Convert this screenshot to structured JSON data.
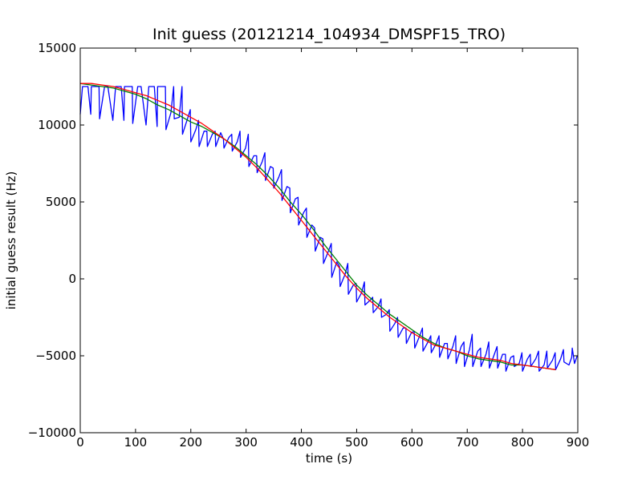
{
  "chart_data": {
    "type": "line",
    "title": "Init guess (20121214_104934_DMSPF15_TRO)",
    "xlabel": "time (s)",
    "ylabel": "initial guess result (Hz)",
    "xlim": [
      0,
      900
    ],
    "ylim": [
      -10000,
      15000
    ],
    "xticks": [
      0,
      100,
      200,
      300,
      400,
      500,
      600,
      700,
      800,
      900
    ],
    "yticks": [
      -10000,
      -5000,
      0,
      5000,
      10000,
      15000
    ],
    "xtick_labels": [
      "0",
      "100",
      "200",
      "300",
      "400",
      "500",
      "600",
      "700",
      "800",
      "900"
    ],
    "ytick_labels": [
      "−10000",
      "−5000",
      "0",
      "5000",
      "10000",
      "15000"
    ],
    "grid": false,
    "legend": "none",
    "series": [
      {
        "color": "#0000ff",
        "x": [
          0,
          4,
          5,
          14,
          19,
          20,
          29,
          34,
          35,
          44,
          49,
          50,
          59,
          64,
          65,
          74,
          79,
          80,
          89,
          94,
          95,
          104,
          109,
          110,
          119,
          124,
          125,
          134,
          139,
          140,
          149,
          154,
          155,
          164,
          169,
          170,
          179,
          184,
          185,
          194,
          199,
          200,
          209,
          214,
          215,
          224,
          229,
          230,
          239,
          244,
          245,
          254,
          259,
          260,
          269,
          274,
          275,
          284,
          289,
          290,
          299,
          304,
          305,
          314,
          319,
          320,
          329,
          334,
          335,
          344,
          349,
          350,
          359,
          364,
          365,
          374,
          379,
          380,
          389,
          394,
          395,
          404,
          409,
          410,
          419,
          424,
          425,
          434,
          439,
          440,
          449,
          454,
          455,
          464,
          469,
          470,
          479,
          484,
          485,
          494,
          499,
          500,
          509,
          514,
          515,
          524,
          529,
          530,
          539,
          544,
          545,
          554,
          559,
          560,
          569,
          574,
          575,
          584,
          589,
          590,
          599,
          604,
          605,
          614,
          619,
          620,
          629,
          634,
          635,
          644,
          649,
          650,
          659,
          664,
          665,
          674,
          679,
          680,
          689,
          694,
          695,
          704,
          709,
          710,
          719,
          724,
          725,
          734,
          739,
          740,
          749,
          754,
          755,
          764,
          769,
          770,
          779,
          784,
          785,
          794,
          799,
          800,
          809,
          814,
          815,
          824,
          829,
          830,
          839,
          844,
          845,
          854,
          859,
          860,
          869,
          874,
          875,
          884,
          889,
          890,
          894,
          899,
          900
        ],
        "y": [
          10700,
          12500,
          12500,
          12500,
          10700,
          12500,
          12500,
          12500,
          10400,
          12500,
          12500,
          12500,
          10300,
          12500,
          12500,
          12500,
          10300,
          12500,
          12500,
          12500,
          10100,
          12500,
          12500,
          12500,
          10000,
          12500,
          12500,
          12500,
          9900,
          12500,
          12500,
          12500,
          9700,
          10800,
          12500,
          10400,
          10500,
          12500,
          9400,
          10400,
          11000,
          8900,
          9700,
          10300,
          8600,
          9600,
          9600,
          8600,
          9400,
          9600,
          8600,
          9500,
          9100,
          8500,
          9200,
          9400,
          8300,
          8900,
          9600,
          7900,
          8500,
          9400,
          7300,
          8000,
          8000,
          6900,
          7600,
          8200,
          6400,
          7300,
          7200,
          5900,
          6600,
          7100,
          5100,
          6000,
          5900,
          4300,
          5200,
          5300,
          3500,
          4300,
          4600,
          2700,
          3500,
          3300,
          1800,
          2700,
          2600,
          1000,
          1800,
          2300,
          100,
          1100,
          800,
          -500,
          300,
          1000,
          -1000,
          -400,
          -300,
          -1500,
          -900,
          -200,
          -1700,
          -1400,
          -1200,
          -2200,
          -1800,
          -1300,
          -2500,
          -2300,
          -2000,
          -3400,
          -2900,
          -2500,
          -3800,
          -3200,
          -3200,
          -4200,
          -3500,
          -3400,
          -4500,
          -3700,
          -3200,
          -4700,
          -4100,
          -3700,
          -4800,
          -4200,
          -3700,
          -5100,
          -4200,
          -4200,
          -5200,
          -4400,
          -3700,
          -5500,
          -4400,
          -4100,
          -5700,
          -4600,
          -3600,
          -5700,
          -4700,
          -4500,
          -5700,
          -4900,
          -4100,
          -5800,
          -4900,
          -4400,
          -5800,
          -4900,
          -4900,
          -6000,
          -5100,
          -5000,
          -5700,
          -5500,
          -4800,
          -6000,
          -5200,
          -4900,
          -5700,
          -5200,
          -4700,
          -6000,
          -5600,
          -4700,
          -5800,
          -5300,
          -4800,
          -5900,
          -5200,
          -4600,
          -5400,
          -5600,
          -5100,
          -4500,
          -5500,
          -5000,
          -5000
        ]
      },
      {
        "color": "#008000",
        "x": [
          0,
          20,
          40,
          60,
          80,
          100,
          120,
          140,
          160,
          180,
          200,
          220,
          240,
          260,
          280,
          300,
          320,
          340,
          360,
          380,
          400,
          420,
          440,
          460,
          480,
          500,
          520,
          540,
          560,
          580,
          600,
          620,
          640,
          660,
          680,
          700,
          720,
          740,
          760,
          780,
          800,
          820,
          840,
          860
        ],
        "y": [
          12700,
          12600,
          12500,
          12400,
          12200,
          12000,
          11700,
          11300,
          11000,
          10600,
          10200,
          9900,
          9500,
          9100,
          8600,
          8000,
          7400,
          6700,
          5900,
          5000,
          4200,
          3300,
          2300,
          1400,
          500,
          -400,
          -1100,
          -1700,
          -2300,
          -2800,
          -3300,
          -3800,
          -4200,
          -4500,
          -4700,
          -5000,
          -5200,
          -5300,
          -5400,
          -5600,
          -5600,
          -5700,
          -5800,
          -5900
        ]
      },
      {
        "color": "#ff0000",
        "x": [
          0,
          20,
          40,
          60,
          80,
          100,
          120,
          140,
          160,
          180,
          200,
          220,
          240,
          260,
          280,
          300,
          320,
          340,
          360,
          380,
          400,
          420,
          440,
          460,
          480,
          500,
          520,
          540,
          560,
          580,
          600,
          620,
          640,
          660,
          680,
          700,
          720,
          740,
          760,
          780,
          800,
          820,
          840,
          860
        ],
        "y": [
          12700,
          12700,
          12600,
          12500,
          12300,
          12100,
          11900,
          11600,
          11300,
          10900,
          10500,
          10100,
          9600,
          9100,
          8500,
          7900,
          7200,
          6400,
          5600,
          4700,
          3800,
          2900,
          2000,
          1100,
          200,
          -600,
          -1300,
          -1900,
          -2500,
          -3000,
          -3500,
          -3900,
          -4300,
          -4500,
          -4700,
          -4900,
          -5100,
          -5200,
          -5300,
          -5500,
          -5600,
          -5700,
          -5800,
          -5900
        ]
      }
    ]
  }
}
